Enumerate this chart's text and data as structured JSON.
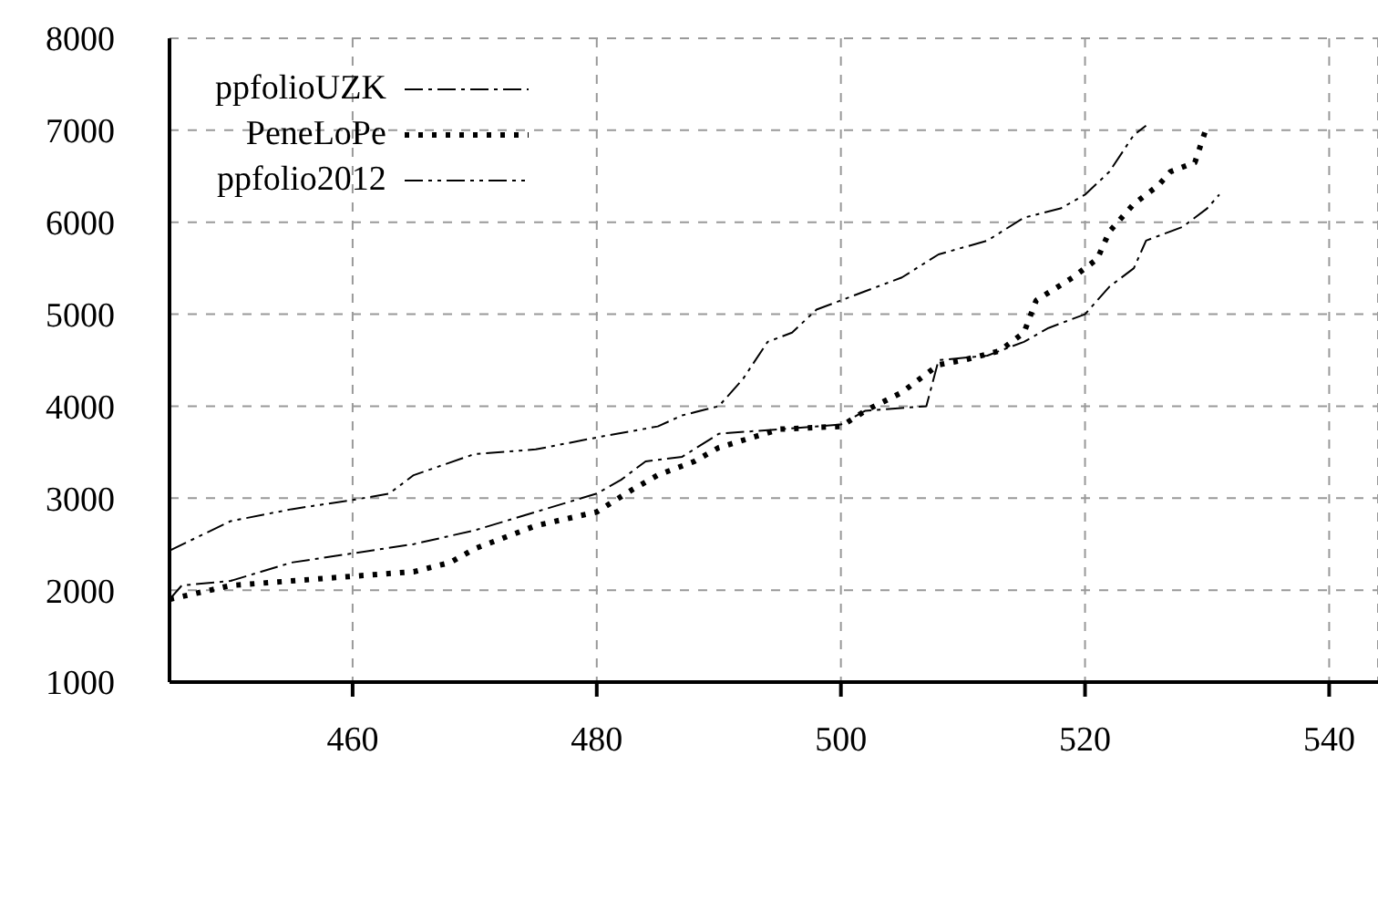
{
  "chart_data": {
    "type": "line",
    "xlim": [
      445,
      544
    ],
    "xticks": [
      460,
      480,
      500,
      520,
      540
    ],
    "ylim": [
      1000,
      8000
    ],
    "yticks": [
      1000,
      2000,
      3000,
      4000,
      5000,
      6000,
      7000,
      8000
    ],
    "grid": true,
    "legend": "top left",
    "marker": "none",
    "series": [
      {
        "name": "ppfolioUZK",
        "color": "#000000",
        "line_style": "dashdot",
        "x": [
          445,
          446,
          450,
          455,
          460,
          465,
          470,
          475,
          480,
          482,
          484,
          487,
          490,
          495,
          500,
          502,
          507,
          508,
          512,
          515,
          517,
          520,
          522,
          524,
          525,
          528,
          530,
          531
        ],
        "values": [
          1900,
          2050,
          2100,
          2300,
          2400,
          2500,
          2650,
          2850,
          3050,
          3200,
          3400,
          3450,
          3700,
          3750,
          3800,
          3950,
          4000,
          4500,
          4550,
          4700,
          4850,
          5000,
          5300,
          5500,
          5800,
          5950,
          6150,
          6300
        ]
      },
      {
        "name": "PeneLoPe",
        "color": "#000000",
        "line_style": "dotted",
        "x": [
          445,
          450,
          455,
          460,
          465,
          468,
          470,
          475,
          480,
          483,
          485,
          488,
          490,
          495,
          500,
          502,
          505,
          508,
          510,
          513,
          515,
          516,
          519,
          521,
          522,
          524,
          526,
          527,
          529,
          530
        ],
        "values": [
          1900,
          2050,
          2100,
          2150,
          2200,
          2300,
          2450,
          2700,
          2850,
          3100,
          3250,
          3400,
          3550,
          3750,
          3780,
          3950,
          4150,
          4450,
          4500,
          4600,
          4800,
          5150,
          5400,
          5600,
          5900,
          6200,
          6400,
          6550,
          6650,
          7050
        ]
      },
      {
        "name": "ppfolio2012",
        "color": "#000000",
        "line_style": "dashdotdot",
        "x": [
          445,
          450,
          455,
          460,
          463,
          465,
          470,
          475,
          480,
          485,
          487,
          490,
          492,
          494,
          496,
          498,
          500,
          505,
          508,
          512,
          515,
          518,
          520,
          522,
          524,
          525
        ],
        "values": [
          2430,
          2750,
          2880,
          2980,
          3050,
          3250,
          3480,
          3530,
          3660,
          3780,
          3900,
          4000,
          4300,
          4700,
          4800,
          5050,
          5150,
          5400,
          5650,
          5800,
          6050,
          6150,
          6300,
          6550,
          6950,
          7050
        ]
      }
    ]
  }
}
